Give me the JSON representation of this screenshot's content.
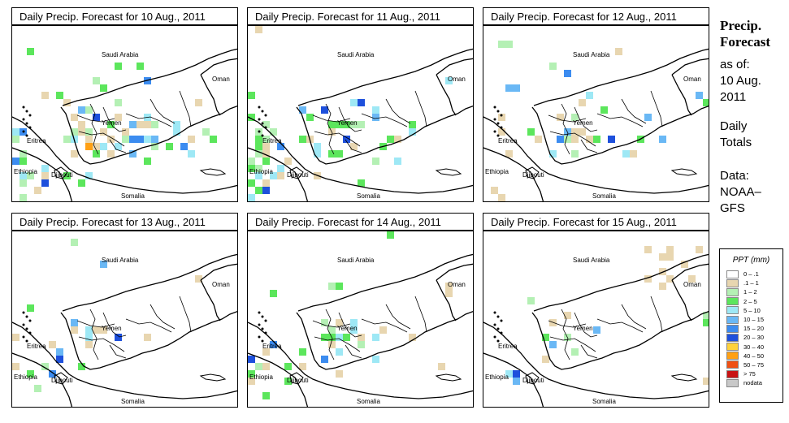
{
  "panels": [
    {
      "title": "Daily Precip. Forecast for  10 Aug., 2011",
      "intensity": 1.0
    },
    {
      "title": "Daily Precip. Forecast for  11 Aug., 2011",
      "intensity": 0.85
    },
    {
      "title": "Daily Precip. Forecast for  12 Aug., 2011",
      "intensity": 0.7
    },
    {
      "title": "Daily Precip. Forecast for  13 Aug., 2011",
      "intensity": 0.45
    },
    {
      "title": "Daily Precip. Forecast for  14 Aug., 2011",
      "intensity": 0.5
    },
    {
      "title": "Daily Precip. Forecast for  15 Aug., 2011",
      "intensity": 0.35
    }
  ],
  "map_labels": {
    "saudi": "Saudi Arabia",
    "oman": "Oman",
    "yemen": "Yemen",
    "eritrea": "Eritrea",
    "ethiopia": "Ethiopia",
    "djibouti": "Djibouti",
    "somalia": "Somalia"
  },
  "side": {
    "title_line1": "Precip.",
    "title_line2": "Forecast",
    "asof": "as of:",
    "date_line1": "10 Aug.",
    "date_line2": "2011",
    "totals_line1": "Daily",
    "totals_line2": "Totals",
    "data_line1": "Data:",
    "data_line2": "NOAA–",
    "data_line3": "GFS"
  },
  "legend": {
    "title": "PPT (mm)",
    "items": [
      {
        "label": "0 – .1",
        "color": "#ffffff"
      },
      {
        "label": ".1 – 1",
        "color": "#e8d6b0"
      },
      {
        "label": "1 – 2",
        "color": "#b4f0b4"
      },
      {
        "label": "2 – 5",
        "color": "#5ce65c"
      },
      {
        "label": "5 – 10",
        "color": "#9ee8f5"
      },
      {
        "label": "10 – 15",
        "color": "#6ab8f5"
      },
      {
        "label": "15 – 20",
        "color": "#3c8cf0"
      },
      {
        "label": "20 – 30",
        "color": "#1e50dc"
      },
      {
        "label": "30 – 40",
        "color": "#ffd23c"
      },
      {
        "label": "40 – 50",
        "color": "#ffa014"
      },
      {
        "label": "50 – 75",
        "color": "#f05014"
      },
      {
        "label": "> 75",
        "color": "#c81414"
      },
      {
        "label": "nodata",
        "color": "#c8c8c8"
      }
    ]
  }
}
